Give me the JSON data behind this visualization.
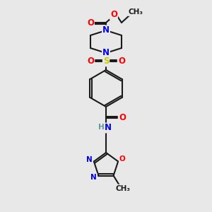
{
  "bg_color": "#e8e8e8",
  "bond_color": "#1a1a1a",
  "atom_colors": {
    "N": "#0000ee",
    "O": "#ff0000",
    "S": "#cccc00",
    "H": "#5a9a9a",
    "C": "#1a1a1a"
  },
  "figsize": [
    3.0,
    3.0
  ],
  "dpi": 100
}
